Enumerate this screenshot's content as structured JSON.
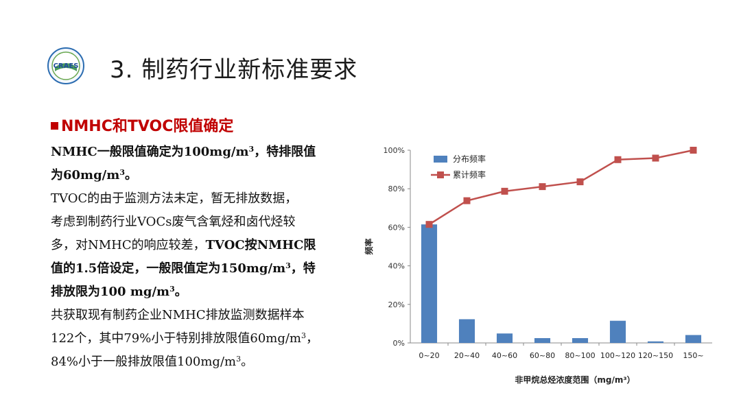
{
  "header": {
    "logo_text": "CRAES",
    "title": "3. 制药行业新标准要求"
  },
  "section": {
    "heading": "NMHC和TVOC限值确定"
  },
  "body": {
    "p1_l1a": "NMHC一般限值确定为100mg/m",
    "p1_l1b": "，特排限值",
    "p1_l2a": "为60mg/m",
    "p1_l2b": "。",
    "p2_l1": "TVOC的由于监测方法未定，暂无排放数据，",
    "p2_l2": "考虑到制药行业VOCs废气含氧烃和卤代烃较",
    "p2_l3a": "多，对NMHC的响应较差，",
    "p2_l3b": "TVOC按NMHC限",
    "p2_l4a": "值的1.5倍设定，一般限值定为150mg/m",
    "p2_l4b": "，特",
    "p2_l5a": "排放限为100 mg/m",
    "p2_l5b": "。",
    "p3_l1": "共获取现有制药企业NMHC排放监测数据样本",
    "p3_l2a": "122个，其中79%小于特别排放限值60mg/m",
    "p3_l2b": "，",
    "p3_l3a": "84%小于一般排放限值100mg/m",
    "p3_l3b": "。",
    "sup3": "3"
  },
  "chart_data": {
    "type": "bar",
    "categories": [
      "0~20",
      "20~40",
      "40~60",
      "60~80",
      "80~100",
      "100~120",
      "120~150",
      "150~"
    ],
    "series": [
      {
        "name": "分布频率",
        "type": "bar",
        "values": [
          61.5,
          12.3,
          4.9,
          2.5,
          2.5,
          11.5,
          0.8,
          4.1
        ],
        "color": "#4f81bd"
      },
      {
        "name": "累计频率",
        "type": "line",
        "values": [
          61.5,
          73.8,
          78.7,
          81.1,
          83.6,
          95.1,
          95.9,
          100
        ],
        "color": "#c0504d"
      }
    ],
    "ylim": [
      0,
      100
    ],
    "yticks": [
      "0%",
      "20%",
      "40%",
      "60%",
      "80%",
      "100%"
    ],
    "xlabel": "非甲烷总烃浓度范围（mg/m³）",
    "ylabel": "频率",
    "legend_position": "top-left"
  }
}
